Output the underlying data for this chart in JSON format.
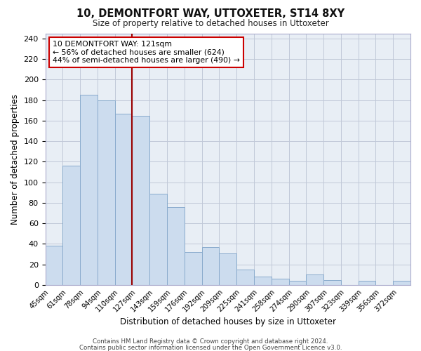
{
  "title": "10, DEMONTFORT WAY, UTTOXETER, ST14 8XY",
  "subtitle": "Size of property relative to detached houses in Uttoxeter",
  "xlabel": "Distribution of detached houses by size in Uttoxeter",
  "ylabel": "Number of detached properties",
  "bin_labels": [
    "45sqm",
    "61sqm",
    "78sqm",
    "94sqm",
    "110sqm",
    "127sqm",
    "143sqm",
    "159sqm",
    "176sqm",
    "192sqm",
    "209sqm",
    "225sqm",
    "241sqm",
    "258sqm",
    "274sqm",
    "290sqm",
    "307sqm",
    "323sqm",
    "339sqm",
    "356sqm",
    "372sqm"
  ],
  "bar_heights": [
    38,
    116,
    185,
    180,
    167,
    165,
    89,
    76,
    32,
    37,
    31,
    15,
    8,
    6,
    4,
    10,
    5,
    0,
    4,
    0,
    4
  ],
  "vline_after_bar": 4,
  "bar_color": "#ccdcee",
  "bar_edgecolor": "#88aacc",
  "vline_color": "#990000",
  "ylim": [
    0,
    245
  ],
  "yticks": [
    0,
    20,
    40,
    60,
    80,
    100,
    120,
    140,
    160,
    180,
    200,
    220,
    240
  ],
  "annotation_title": "10 DEMONTFORT WAY: 121sqm",
  "annotation_line1": "← 56% of detached houses are smaller (624)",
  "annotation_line2": "44% of semi-detached houses are larger (490) →",
  "bg_color": "#ffffff",
  "plot_bg_color": "#e8eef5",
  "grid_color": "#c0c8d8",
  "footer1": "Contains HM Land Registry data © Crown copyright and database right 2024.",
  "footer2": "Contains public sector information licensed under the Open Government Licence v3.0."
}
